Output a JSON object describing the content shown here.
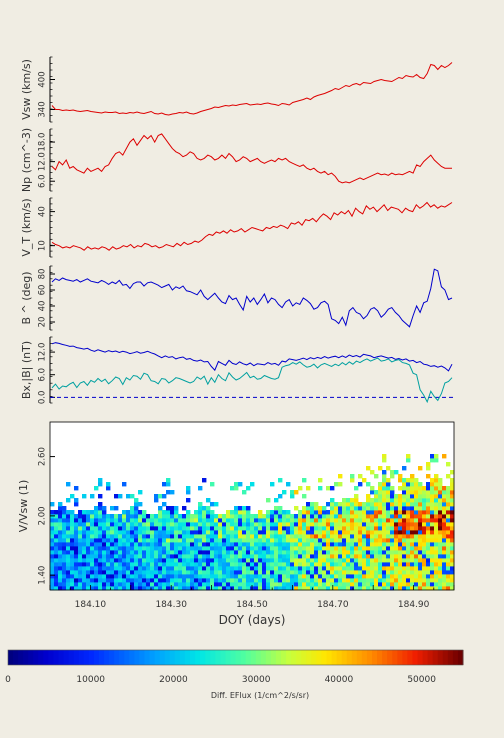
{
  "chart_data": [
    {
      "type": "line",
      "ylabel": "Vsw (km/s)",
      "yticks": [
        "340",
        "400"
      ],
      "ylim": [
        315,
        445
      ],
      "colors": [
        "#dd0000"
      ],
      "series": [
        {
          "color": "#dd0000",
          "values": [
            348,
            340,
            340,
            338,
            339,
            338,
            339,
            337,
            336,
            337,
            338,
            336,
            335,
            334,
            333,
            335,
            334,
            334,
            335,
            332,
            333,
            332,
            334,
            333,
            335,
            333,
            332,
            334,
            336,
            332,
            331,
            333,
            330,
            329,
            331,
            332,
            334,
            333,
            335,
            332,
            331,
            333,
            336,
            338,
            340,
            342,
            345,
            344,
            346,
            348,
            347,
            349,
            348,
            350,
            351,
            352,
            349,
            350,
            351,
            350,
            352,
            353,
            351,
            350,
            348,
            352,
            351,
            349,
            354,
            356,
            358,
            360,
            363,
            360,
            365,
            368,
            370,
            372,
            375,
            378,
            382,
            380,
            384,
            388,
            386,
            390,
            392,
            389,
            394,
            393,
            392,
            396,
            398,
            400,
            398,
            397,
            396,
            400,
            404,
            402,
            408,
            406,
            405,
            410,
            404,
            402,
            412,
            430,
            428,
            420,
            428,
            424,
            428,
            434
          ]
        }
      ]
    },
    {
      "type": "line",
      "ylabel": "Np (cm^-3)",
      "yticks": [
        "6.0",
        "12.0",
        "18.0"
      ],
      "ylim": [
        3,
        22
      ],
      "colors": [
        "#dd0000"
      ],
      "series": [
        {
          "color": "#dd0000",
          "values": [
            10.5,
            9.5,
            12,
            11,
            12.5,
            10,
            10.5,
            9.5,
            9,
            8.5,
            10,
            9,
            9.5,
            10,
            9,
            10.5,
            11,
            13,
            14.5,
            15,
            14,
            16,
            18,
            19,
            17,
            18.5,
            20,
            19,
            20,
            18,
            20,
            20.5,
            19,
            17.5,
            16,
            15,
            14.5,
            13.5,
            14,
            15,
            14.5,
            13,
            12.5,
            13,
            14,
            13.5,
            12.5,
            13,
            14,
            13,
            14.5,
            13.5,
            12,
            12.5,
            13.5,
            13,
            12,
            12.5,
            13,
            12,
            11.5,
            12,
            12.5,
            12,
            13,
            12.5,
            13,
            12,
            11.5,
            11,
            10.5,
            11,
            10,
            9.5,
            10,
            9,
            8.5,
            9,
            8,
            8.5,
            7.5,
            6,
            5.5,
            5.8,
            5.5,
            6,
            6.5,
            7,
            6.5,
            7,
            7.5,
            8,
            8.5,
            8,
            8.2,
            7.8,
            8.5,
            8,
            8.2,
            8,
            8.5,
            9,
            8.5,
            11,
            10.5,
            12,
            13,
            14,
            12.5,
            11.5,
            10.5,
            10,
            10,
            10
          ]
        }
      ]
    },
    {
      "type": "line",
      "ylabel": "V_T (km/s)",
      "yticks": [
        "10",
        "40"
      ],
      "ylim": [
        0,
        52
      ],
      "colors": [
        "#dd0000"
      ],
      "series": [
        {
          "color": "#dd0000",
          "values": [
            13,
            11,
            10,
            8,
            9,
            8,
            10,
            9,
            8,
            6,
            9,
            7,
            8,
            7,
            9,
            8,
            6,
            9,
            7,
            8,
            10,
            9,
            11,
            8,
            10,
            9,
            12,
            11,
            9,
            10,
            8,
            9,
            11,
            10,
            9,
            12,
            10,
            13,
            11,
            12,
            14,
            13,
            15,
            18,
            20,
            19,
            22,
            21,
            23,
            21,
            24,
            22,
            23,
            25,
            22,
            24,
            26,
            25,
            24,
            23,
            26,
            25,
            27,
            26,
            28,
            27,
            25,
            30,
            29,
            31,
            28,
            33,
            32,
            34,
            31,
            35,
            38,
            36,
            33,
            39,
            37,
            40,
            38,
            41,
            36,
            43,
            40,
            38,
            45,
            42,
            44,
            40,
            43,
            46,
            41,
            44,
            43,
            42,
            39,
            43,
            41,
            40,
            46,
            43,
            45,
            48,
            44,
            46,
            43,
            45,
            44,
            46,
            48
          ]
        }
      ]
    },
    {
      "type": "line",
      "ylabel": "B ^ (deg)",
      "yticks": [
        "20",
        "40",
        "60",
        "80"
      ],
      "ylim": [
        10,
        90
      ],
      "colors": [
        "#0000cc"
      ],
      "series": [
        {
          "color": "#0000cc",
          "values": [
            70,
            74,
            72,
            75,
            73,
            72,
            71,
            73,
            70,
            72,
            74,
            71,
            70,
            69,
            72,
            70,
            67,
            70,
            68,
            72,
            66,
            67,
            62,
            68,
            70,
            70,
            65,
            69,
            70,
            68,
            66,
            63,
            65,
            67,
            60,
            64,
            62,
            65,
            59,
            58,
            56,
            54,
            60,
            52,
            48,
            52,
            56,
            50,
            45,
            43,
            53,
            48,
            50,
            42,
            35,
            52,
            45,
            50,
            42,
            48,
            55,
            44,
            50,
            48,
            42,
            38,
            45,
            48,
            40,
            44,
            42,
            50,
            47,
            43,
            36,
            38,
            44,
            46,
            42,
            24,
            22,
            18,
            26,
            16,
            34,
            38,
            32,
            30,
            24,
            28,
            36,
            38,
            34,
            26,
            30,
            36,
            38,
            32,
            28,
            22,
            18,
            14,
            28,
            40,
            32,
            44,
            46,
            62,
            86,
            84,
            64,
            60,
            48,
            50
          ]
        }
      ]
    },
    {
      "type": "line",
      "ylabel": "Bx,|B| (nT)",
      "yticks": [
        "0.0",
        "6.0",
        "12.0"
      ],
      "ylim": [
        -1.5,
        16
      ],
      "zero_line": 0,
      "colors": [
        "#0000cc",
        "#00a0a0"
      ],
      "series": [
        {
          "color": "#0000cc",
          "values": [
            14.2,
            14.5,
            14.3,
            14,
            13.8,
            13.5,
            13.6,
            13.2,
            13,
            12.8,
            13,
            12.5,
            12.2,
            12.6,
            12.3,
            12,
            12.4,
            12.1,
            12.3,
            11.9,
            12.2,
            12.0,
            11.6,
            11.8,
            12.1,
            11.7,
            11.9,
            12.2,
            11.8,
            11.5,
            11,
            10.5,
            11,
            10.6,
            10.8,
            10.2,
            10.5,
            10.7,
            10.1,
            10.3,
            9.8,
            9.6,
            9.9,
            9.4,
            9.5,
            8.2,
            7.2,
            9.5,
            9.0,
            8.5,
            9.8,
            9.0,
            8.7,
            9.4,
            8.9,
            8.6,
            9.1,
            8.4,
            8.9,
            8.8,
            8.6,
            9.2,
            8.8,
            9.0,
            8.5,
            9.6,
            9.4,
            10.2,
            10.0,
            9.8,
            10.1,
            10.4,
            10.0,
            10.5,
            10.2,
            10.6,
            10.3,
            10.8,
            10.4,
            10.7,
            10.9,
            10.5,
            11.0,
            10.6,
            11.2,
            10.8,
            11.1,
            10.7,
            11.4,
            11.2,
            11.0,
            10.5,
            10.8,
            11.0,
            10.7,
            10.4,
            10.6,
            10.1,
            10.3,
            9.9,
            10.2,
            9.6,
            9.8,
            9.2,
            9.5,
            8.8,
            8.6,
            8.2,
            8.4,
            8.0,
            8.3,
            7.8,
            7.0,
            8.8
          ]
        },
        {
          "color": "#00a0a0",
          "values": [
            2.5,
            3.5,
            2.2,
            3.0,
            2.8,
            3.5,
            4.0,
            2.6,
            3.8,
            4.2,
            3.2,
            4.5,
            4.0,
            5.0,
            4.2,
            4.8,
            3.6,
            4.4,
            5.4,
            5.0,
            3.4,
            5.2,
            4.6,
            5.8,
            5.6,
            4.8,
            6.4,
            6.0,
            4.4,
            4.2,
            3.6,
            5.0,
            4.8,
            3.8,
            4.4,
            5.2,
            5.0,
            4.6,
            4.2,
            3.8,
            4.2,
            5.4,
            4.8,
            5.6,
            3.5,
            5.2,
            4.0,
            6.0,
            5.0,
            4.4,
            6.5,
            5.4,
            4.6,
            5.0,
            5.8,
            6.6,
            5.2,
            5.6,
            4.8,
            5.0,
            5.8,
            5.4,
            5.0,
            4.8,
            5.2,
            8.0,
            8.4,
            8.6,
            9.2,
            8.8,
            9.4,
            8.6,
            8.0,
            8.2,
            8.8,
            7.8,
            8.6,
            9.0,
            8.6,
            8.2,
            8.8,
            8.4,
            9.2,
            8.6,
            9.4,
            8.8,
            9.6,
            9.2,
            9.8,
            10.2,
            9.6,
            10.0,
            10.4,
            9.6,
            9.8,
            10.2,
            9.4,
            9.8,
            10.0,
            9.2,
            9.0,
            8.6,
            6.4,
            6.0,
            2.0,
            0.6,
            -1.2,
            1.6,
            0.2,
            -0.8,
            1.0,
            3.8,
            4.2,
            5.2
          ]
        }
      ]
    },
    {
      "type": "heatmap",
      "ylabel": "V/Vsw (1)",
      "yticks": [
        "1.40",
        "2.00",
        "2.60"
      ],
      "ylim": [
        1.25,
        2.95
      ],
      "xlabel": "DOY (days)",
      "xticks": [
        "184.10",
        "184.30",
        "184.50",
        "184.70",
        "184.90"
      ],
      "xlim": [
        184.0,
        184.9999
      ],
      "cmap_max": 55000
    }
  ],
  "colorbar": {
    "label": "Diff. EFlux (1/cm^2/s/sr)",
    "ticks": [
      "0",
      "10000",
      "20000",
      "30000",
      "40000",
      "50000"
    ],
    "tick_values": [
      0,
      10000,
      20000,
      30000,
      40000,
      50000
    ],
    "max": 55000
  }
}
